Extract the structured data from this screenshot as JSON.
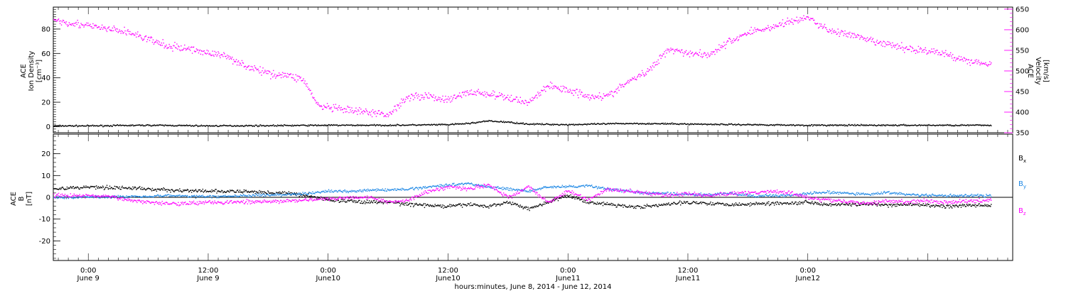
{
  "colors": {
    "black": "#000000",
    "magenta": "#ff00ff",
    "blue": "#1e88e5"
  },
  "chart_data": [
    {
      "type": "scatter",
      "title": "",
      "ylabel_lines": [
        "ACE",
        "Ion Density",
        "[cm⁻³]"
      ],
      "y2label_lines": [
        "ACE",
        "Velocity",
        "[km/s]"
      ],
      "ylim": [
        -5,
        98
      ],
      "yticks": [
        0,
        20,
        40,
        60,
        80
      ],
      "y2lim": [
        350,
        655
      ],
      "y2ticks": [
        350,
        400,
        450,
        500,
        550,
        600,
        650
      ],
      "xlim_hours": [
        -3.5,
        92.5
      ],
      "series": [
        {
          "axis": "left",
          "color": "#000000",
          "x_hours": [
            -3.5,
            0,
            6,
            12,
            18,
            24,
            30,
            36,
            38,
            40,
            42,
            44,
            48,
            54,
            60,
            66,
            72,
            78,
            84,
            90.3
          ],
          "values": [
            1.0,
            1.0,
            1.5,
            1.0,
            1.2,
            1.5,
            1.5,
            2.0,
            3.0,
            5.0,
            4.0,
            2.5,
            2.0,
            3.0,
            2.5,
            2.0,
            1.5,
            1.5,
            1.5,
            1.5
          ]
        },
        {
          "axis": "right",
          "color": "#ff00ff",
          "x_hours": [
            -3.5,
            0,
            4,
            8,
            10,
            12,
            14,
            16,
            18,
            20,
            21.5,
            23,
            26,
            28,
            30,
            32,
            34,
            36,
            38,
            40,
            42,
            44,
            46,
            48,
            50,
            52,
            54,
            56,
            58,
            60,
            62,
            64,
            66,
            68,
            70,
            72,
            74,
            76,
            78,
            80,
            82,
            84,
            86,
            88,
            90.3
          ],
          "values": [
            625,
            610,
            595,
            560,
            555,
            545,
            535,
            510,
            495,
            490,
            480,
            415,
            405,
            400,
            395,
            440,
            440,
            430,
            450,
            445,
            435,
            425,
            465,
            455,
            440,
            440,
            475,
            500,
            555,
            545,
            540,
            570,
            595,
            605,
            620,
            630,
            600,
            590,
            575,
            565,
            555,
            550,
            540,
            525,
            520
          ]
        }
      ]
    },
    {
      "type": "scatter",
      "title": "",
      "ylabel_lines": [
        "ACE",
        "B",
        "[nT]"
      ],
      "ylim": [
        -29,
        29
      ],
      "yticks": [
        -20,
        -10,
        0,
        10,
        20
      ],
      "xlim_hours": [
        -3.5,
        92.5
      ],
      "zero_line": true,
      "series": [
        {
          "name": "Bx",
          "color": "#000000",
          "x_hours": [
            -3.5,
            0,
            4,
            8,
            12,
            16,
            20,
            22,
            24,
            26,
            28,
            30,
            32,
            34,
            36,
            38,
            40,
            42,
            44,
            46,
            48,
            50,
            52,
            54,
            56,
            58,
            60,
            62,
            64,
            66,
            68,
            70,
            72,
            74,
            76,
            78,
            80,
            82,
            84,
            86,
            88,
            90.3
          ],
          "values": [
            4.0,
            5.0,
            4.5,
            3.5,
            3.0,
            2.8,
            2.0,
            1.0,
            -1.0,
            -1.5,
            -2.0,
            -2.0,
            -3.0,
            -3.5,
            -4.0,
            -3.0,
            -4.0,
            -2.0,
            -5.0,
            -2.0,
            1.0,
            -2.0,
            -3.0,
            -4.0,
            -4.0,
            -3.0,
            -2.0,
            -2.5,
            -3.0,
            -3.0,
            -2.5,
            -2.5,
            -2.0,
            -3.0,
            -3.0,
            -3.0,
            -3.5,
            -3.0,
            -3.5,
            -4.0,
            -3.5,
            -3.5
          ]
        },
        {
          "name": "By",
          "color": "#1e88e5",
          "x_hours": [
            -3.5,
            0,
            4,
            8,
            12,
            16,
            20,
            22,
            24,
            26,
            28,
            30,
            32,
            34,
            36,
            38,
            40,
            42,
            44,
            46,
            48,
            50,
            52,
            54,
            56,
            58,
            60,
            62,
            64,
            66,
            68,
            70,
            72,
            74,
            76,
            78,
            80,
            82,
            84,
            86,
            88,
            90.3
          ],
          "values": [
            0.0,
            0.5,
            0.5,
            1.0,
            0.5,
            1.0,
            1.5,
            2.0,
            3.0,
            3.0,
            3.5,
            3.5,
            4.0,
            5.0,
            6.0,
            6.5,
            5.0,
            4.0,
            3.0,
            5.0,
            5.0,
            5.5,
            4.0,
            3.0,
            2.0,
            2.0,
            1.5,
            1.5,
            2.0,
            1.0,
            1.0,
            1.0,
            2.0,
            2.5,
            2.0,
            1.5,
            2.5,
            1.5,
            1.0,
            1.0,
            1.0,
            1.0
          ]
        },
        {
          "name": "Bz",
          "color": "#ff00ff",
          "x_hours": [
            -3.5,
            0,
            2,
            4,
            6,
            8,
            10,
            12,
            16,
            20,
            22,
            24,
            26,
            28,
            30,
            32,
            34,
            36,
            38,
            40,
            42,
            44,
            46,
            48,
            50,
            52,
            54,
            56,
            58,
            60,
            62,
            64,
            66,
            68,
            70,
            72,
            74,
            76,
            78,
            80,
            82,
            84,
            86,
            88,
            90.3
          ],
          "values": [
            1.0,
            1.0,
            0.5,
            -1.0,
            -2.0,
            -2.5,
            -2.5,
            -2.0,
            -2.0,
            -1.5,
            -1.0,
            -0.5,
            0.0,
            0.5,
            -2.0,
            -1.0,
            3.0,
            5.0,
            4.0,
            6.0,
            0.0,
            5.0,
            -2.0,
            3.0,
            -1.0,
            4.0,
            3.0,
            2.0,
            1.0,
            2.0,
            1.0,
            2.0,
            2.0,
            3.0,
            2.5,
            0.0,
            -1.0,
            -2.0,
            -2.5,
            -1.5,
            -2.0,
            -1.5,
            -2.0,
            -1.5,
            -1.0
          ]
        }
      ],
      "legend": {
        "placement": "right",
        "entries": [
          "Bx",
          "By",
          "Bz"
        ]
      }
    }
  ],
  "x_axis": {
    "major_ticks": [
      {
        "hour": 0,
        "time": "0:00",
        "day": "June 9"
      },
      {
        "hour": 12,
        "time": "12:00",
        "day": "June 9"
      },
      {
        "hour": 24,
        "time": "0:00",
        "day": "June10"
      },
      {
        "hour": 36,
        "time": "12:00",
        "day": "June10"
      },
      {
        "hour": 48,
        "time": "0:00",
        "day": "June11"
      },
      {
        "hour": 60,
        "time": "12:00",
        "day": "June11"
      },
      {
        "hour": 72,
        "time": "0:00",
        "day": "June12"
      }
    ],
    "label": "hours:minutes, June  8, 2014 - June 12, 2014"
  }
}
